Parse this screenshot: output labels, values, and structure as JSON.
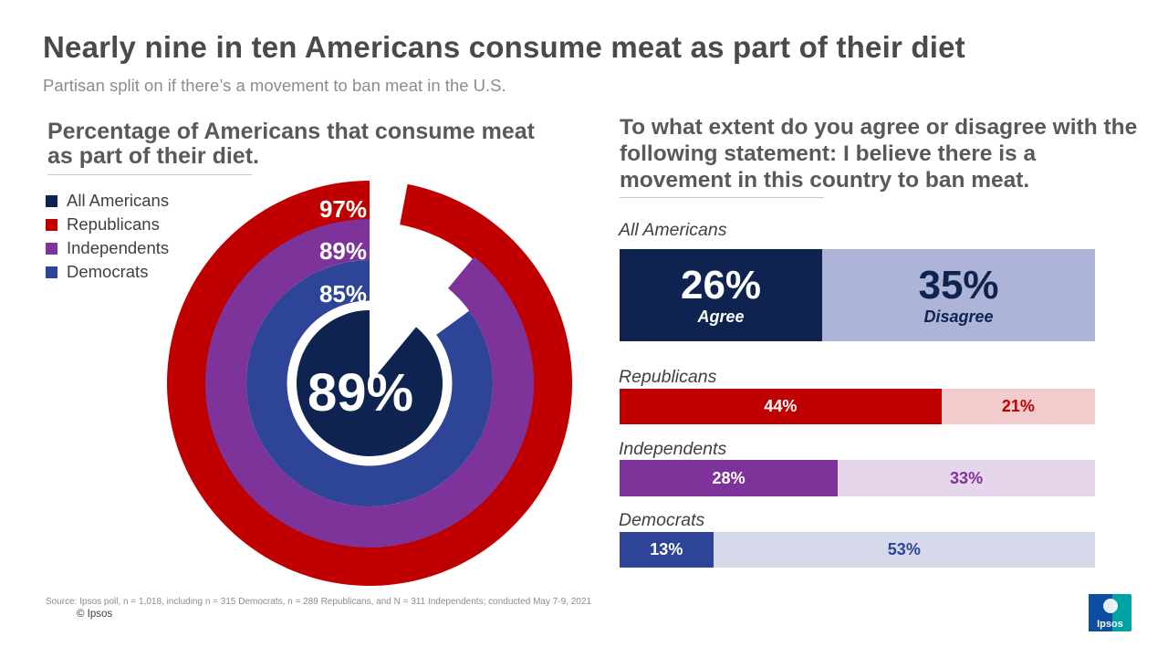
{
  "title": "Nearly nine in ten Americans consume meat as part of their diet",
  "subtitle": "Partisan split on if there’s a movement to ban meat in the U.S.",
  "source": "Source: Ipsos poll, n = 1,018, including n = 315 Democrats, n = 289 Republicans, and N = 311 Independents; conducted May 7-9, 2021",
  "copyright": "© Ipsos",
  "logo_text": "Ipsos",
  "colors": {
    "all": "#0e2350",
    "republicans": "#c00000",
    "independents": "#7d3399",
    "democrats": "#2e4497",
    "text_dark": "#404040",
    "text_gray": "#595959"
  },
  "chart_data": [
    {
      "type": "radial-bar",
      "title": "Percentage of Americans that consume meat as part of their diet.",
      "legend": [
        "All Americans",
        "Republicans",
        "Independents",
        "Democrats"
      ],
      "unit": "%",
      "series": [
        {
          "name": "Republicans",
          "value": 97,
          "label": "97%",
          "color": "#c00000"
        },
        {
          "name": "Independents",
          "value": 89,
          "label": "89%",
          "color": "#7d3399"
        },
        {
          "name": "Democrats",
          "value": 85,
          "label": "85%",
          "color": "#2e4497"
        },
        {
          "name": "All Americans",
          "value": 89,
          "label": "89%",
          "color": "#0e2350"
        }
      ]
    },
    {
      "type": "bar",
      "orientation": "horizontal",
      "stacked": true,
      "title": "To what extent do you agree or disagree with the following statement: I believe there is a movement in this country to ban meat.",
      "agree_label": "Agree",
      "disagree_label": "Disagree",
      "scale_max": 61,
      "categories": [
        "All Americans",
        "Republicans",
        "Independents",
        "Democrats"
      ],
      "series": [
        {
          "name": "Agree",
          "values": [
            26,
            44,
            28,
            13
          ],
          "labels": [
            "26%",
            "44%",
            "28%",
            "13%"
          ]
        },
        {
          "name": "Disagree",
          "values": [
            35,
            21,
            33,
            53
          ],
          "labels": [
            "35%",
            "21%",
            "33%",
            "53%"
          ]
        }
      ]
    }
  ]
}
